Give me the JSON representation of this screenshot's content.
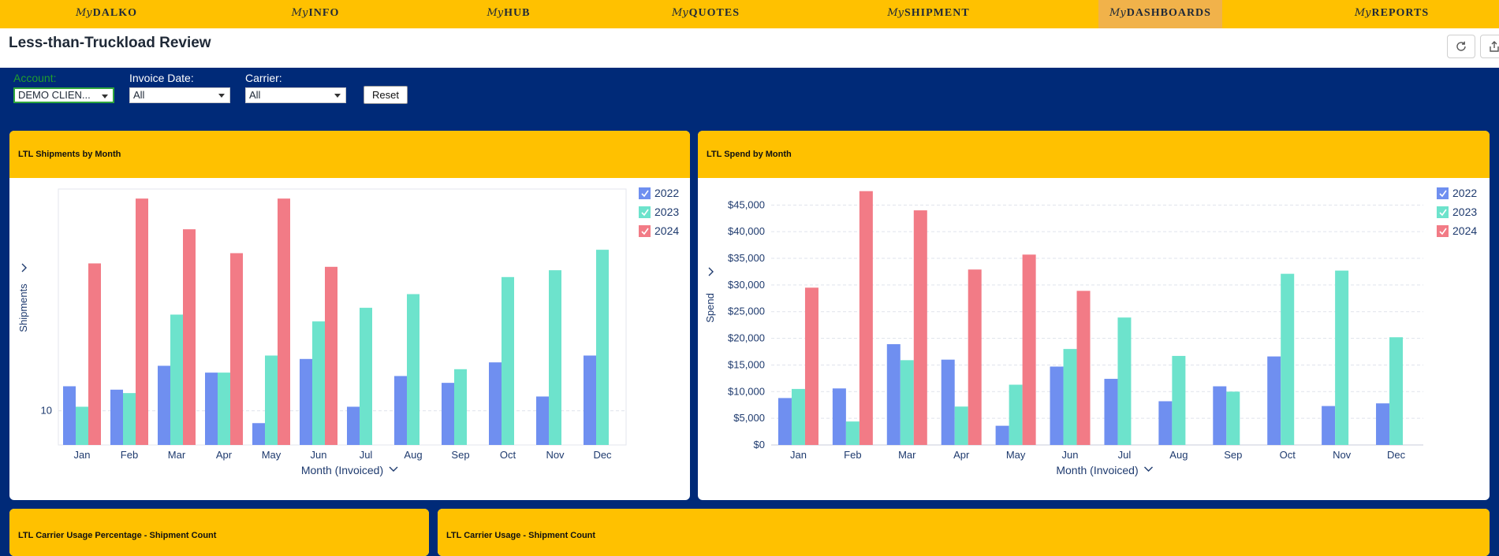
{
  "nav": {
    "my_prefix": "My",
    "items": [
      {
        "label": "DALKO",
        "active": false
      },
      {
        "label": "INFO",
        "active": false
      },
      {
        "label": "HUB",
        "active": false
      },
      {
        "label": "QUOTES",
        "active": false
      },
      {
        "label": "SHIPMENT",
        "active": false
      },
      {
        "label": "DASHBOARDS",
        "active": true
      },
      {
        "label": "REPORTS",
        "active": false
      }
    ]
  },
  "page": {
    "title": "Less-than-Truckload Review",
    "refresh_icon": "refresh-icon",
    "share_icon": "share-icon"
  },
  "filters": {
    "account": {
      "label": "Account:",
      "value": "DEMO CLIEN..."
    },
    "invoice_date": {
      "label": "Invoice Date:",
      "value": "All"
    },
    "carrier": {
      "label": "Carrier:",
      "value": "All"
    },
    "reset_label": "Reset"
  },
  "colors": {
    "nav_bg": "#ffc100",
    "page_bg": "#002a78",
    "series_2022": "#6f8ff0",
    "series_2023": "#6de3cc",
    "series_2024": "#f27b86"
  },
  "panels": {
    "shipments_title": "LTL Shipments by Month",
    "spend_title": "LTL Spend by Month",
    "carrier_pct_title": "LTL Carrier Usage Percentage - Shipment Count",
    "carrier_usage_title": "LTL Carrier Usage - Shipment Count"
  },
  "chart_data": [
    {
      "type": "bar",
      "title": "LTL Shipments by Month",
      "ylabel": "Shipments",
      "xlabel": "Month (Invoiced)",
      "categories": [
        "Jan",
        "Feb",
        "Mar",
        "Apr",
        "May",
        "Jun",
        "Jul",
        "Aug",
        "Sep",
        "Oct",
        "Nov",
        "Dec"
      ],
      "yticks": [
        10
      ],
      "ylim": [
        5,
        42.5
      ],
      "legend_position": "top-right",
      "series": [
        {
          "name": "2022",
          "color": "#6f8ff0",
          "values": [
            13.6,
            13.1,
            16.6,
            15.6,
            8.2,
            17.6,
            10.6,
            15.1,
            14.1,
            17.1,
            12.1,
            18.1
          ]
        },
        {
          "name": "2023",
          "color": "#6de3cc",
          "values": [
            10.6,
            12.6,
            24.1,
            15.6,
            18.1,
            23.1,
            25.1,
            27.1,
            16.1,
            29.6,
            30.6,
            33.6
          ]
        },
        {
          "name": "2024",
          "color": "#f27b86",
          "values": [
            31.6,
            41.1,
            36.6,
            33.1,
            41.1,
            31.1,
            null,
            null,
            null,
            null,
            null,
            null
          ]
        }
      ]
    },
    {
      "type": "bar",
      "title": "LTL Spend by Month",
      "ylabel": "Spend",
      "xlabel": "Month (Invoiced)",
      "categories": [
        "Jan",
        "Feb",
        "Mar",
        "Apr",
        "May",
        "Jun",
        "Jul",
        "Aug",
        "Sep",
        "Oct",
        "Nov",
        "Dec"
      ],
      "yticks": [
        "$0",
        "$5,000",
        "$10,000",
        "$15,000",
        "$20,000",
        "$25,000",
        "$30,000",
        "$35,000",
        "$40,000",
        "$45,000"
      ],
      "ylim": [
        0,
        48000
      ],
      "legend_position": "top-right",
      "series": [
        {
          "name": "2022",
          "color": "#6f8ff0",
          "values": [
            8800,
            10600,
            18900,
            16000,
            3600,
            14700,
            12400,
            8200,
            11000,
            16600,
            7300,
            7800
          ]
        },
        {
          "name": "2023",
          "color": "#6de3cc",
          "values": [
            10500,
            4400,
            15900,
            7200,
            11300,
            18000,
            23900,
            16700,
            10000,
            32100,
            32700,
            20200
          ]
        },
        {
          "name": "2024",
          "color": "#f27b86",
          "values": [
            29500,
            47600,
            44000,
            32900,
            35700,
            28900,
            null,
            null,
            null,
            null,
            null,
            null
          ]
        }
      ]
    }
  ]
}
